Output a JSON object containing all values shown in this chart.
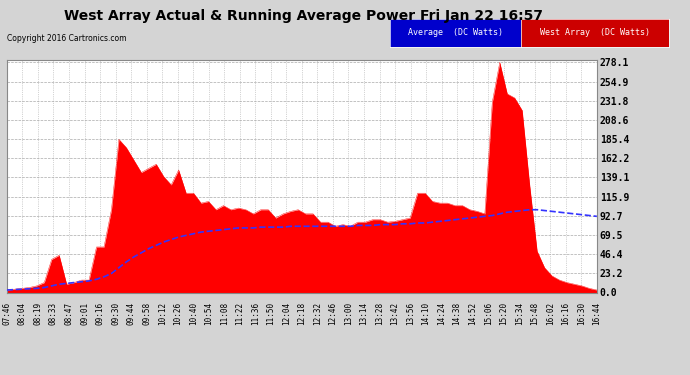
{
  "title": "West Array Actual & Running Average Power Fri Jan 22 16:57",
  "copyright": "Copyright 2016 Cartronics.com",
  "legend_avg": "Average  (DC Watts)",
  "legend_west": "West Array  (DC Watts)",
  "ymin": 0.0,
  "ymax": 278.1,
  "yticks": [
    0.0,
    23.2,
    46.4,
    69.5,
    92.7,
    115.9,
    139.1,
    162.2,
    185.4,
    208.6,
    231.8,
    254.9,
    278.1
  ],
  "red_color": "#ff0000",
  "avg_line_color": "#3333ff",
  "plot_bg": "#ffffff",
  "outer_bg": "#d4d4d4",
  "grid_color": "#aaaaaa",
  "title_color": "#000000",
  "xtick_labels": [
    "07:46",
    "08:04",
    "08:19",
    "08:33",
    "08:47",
    "09:01",
    "09:16",
    "09:30",
    "09:44",
    "09:58",
    "10:12",
    "10:26",
    "10:40",
    "10:54",
    "11:08",
    "11:22",
    "11:36",
    "11:50",
    "12:04",
    "12:18",
    "12:32",
    "12:46",
    "13:00",
    "13:14",
    "13:28",
    "13:42",
    "13:56",
    "14:10",
    "14:24",
    "14:38",
    "14:52",
    "15:06",
    "15:20",
    "15:34",
    "15:48",
    "16:02",
    "16:16",
    "16:30",
    "16:44"
  ],
  "west_array_values": [
    3,
    4,
    5,
    6,
    8,
    12,
    40,
    45,
    10,
    12,
    15,
    15,
    55,
    55,
    100,
    185,
    175,
    160,
    145,
    150,
    155,
    140,
    130,
    148,
    120,
    120,
    108,
    110,
    100,
    105,
    100,
    102,
    100,
    95,
    100,
    100,
    90,
    95,
    98,
    100,
    95,
    95,
    85,
    85,
    80,
    82,
    80,
    85,
    85,
    88,
    88,
    85,
    86,
    88,
    90,
    120,
    120,
    110,
    108,
    108,
    105,
    105,
    100,
    98,
    95,
    230,
    278,
    240,
    235,
    220,
    130,
    50,
    30,
    20,
    15,
    12,
    10,
    8,
    5,
    3
  ],
  "avg_values": [
    3,
    3.5,
    4,
    4.5,
    5,
    6,
    8,
    10,
    11,
    12,
    13,
    14,
    16,
    19,
    23,
    30,
    37,
    43,
    48,
    53,
    57,
    61,
    64,
    67,
    69,
    71,
    73,
    74,
    75,
    76,
    77,
    78,
    78,
    78,
    79,
    79,
    79,
    79,
    80,
    80,
    80,
    80,
    80,
    80,
    80,
    80,
    80,
    81,
    81,
    81,
    82,
    82,
    82,
    83,
    83,
    84,
    84,
    85,
    86,
    87,
    88,
    89,
    90,
    91,
    92,
    93,
    95,
    97,
    98,
    99,
    100,
    100,
    99,
    98,
    97,
    96,
    95,
    94,
    93,
    92
  ]
}
